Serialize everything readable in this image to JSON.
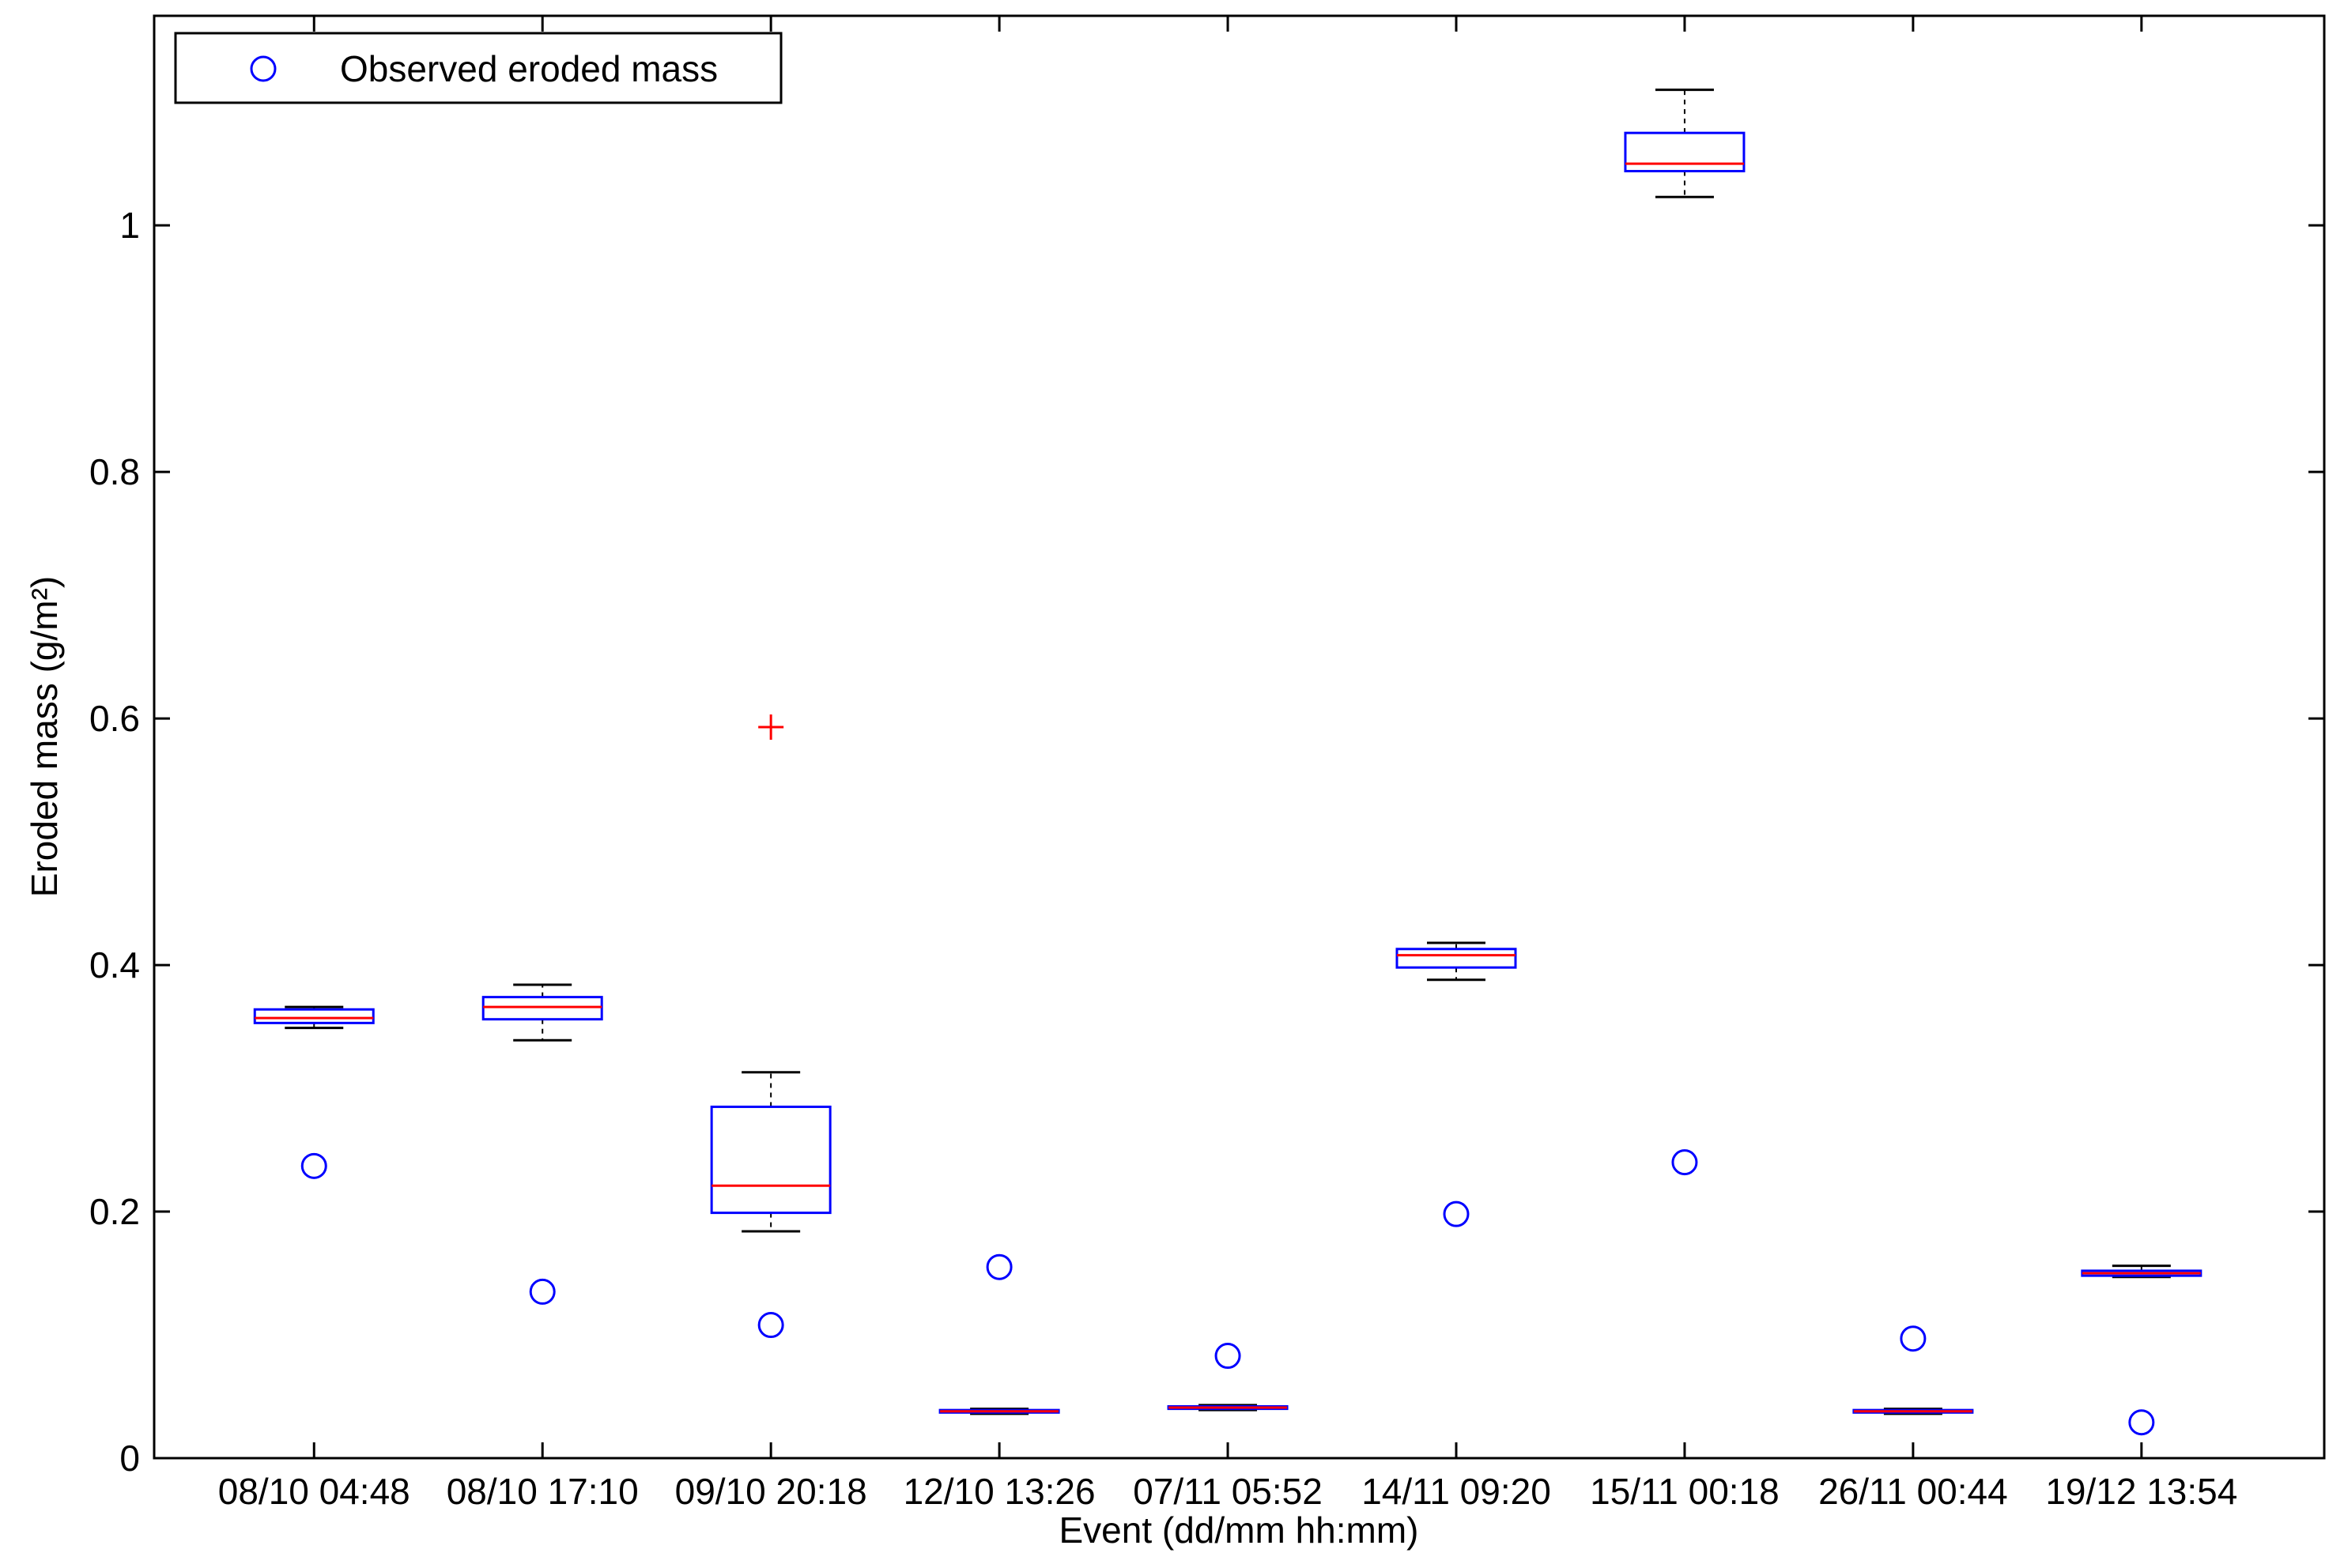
{
  "chart_data": {
    "type": "box",
    "xlabel": "Event (dd/mm hh:mm)",
    "ylabel": "Eroded mass (g/m²)",
    "ylim": [
      0,
      1.17
    ],
    "yticks": [
      0,
      0.2,
      0.4,
      0.6,
      0.8,
      1
    ],
    "ytick_labels": [
      "0",
      "0.2",
      "0.4",
      "0.6",
      "0.8",
      "1"
    ],
    "grid": false,
    "legend": {
      "position": "top-left",
      "entries": [
        "Observed eroded mass"
      ]
    },
    "colors": {
      "box": "#0000ff",
      "median": "#ff0000",
      "whisker": "#000000",
      "outlier": "#ff0000",
      "observed": "#0000ff"
    },
    "categories": [
      "08/10 04:48",
      "08/10 17:10",
      "09/10 20:18",
      "12/10 13:26",
      "07/11 05:52",
      "14/11 09:20",
      "15/11 00:18",
      "26/11 00:44",
      "19/12 13:54"
    ],
    "boxes": [
      {
        "whislo": 0.349,
        "q1": 0.353,
        "median": 0.357,
        "q3": 0.364,
        "whishi": 0.366,
        "outliers": []
      },
      {
        "whislo": 0.339,
        "q1": 0.356,
        "median": 0.366,
        "q3": 0.374,
        "whishi": 0.384,
        "outliers": []
      },
      {
        "whislo": 0.184,
        "q1": 0.199,
        "median": 0.221,
        "q3": 0.285,
        "whishi": 0.313,
        "outliers": [
          0.593
        ]
      },
      {
        "whislo": 0.036,
        "q1": 0.037,
        "median": 0.038,
        "q3": 0.039,
        "whishi": 0.04,
        "outliers": []
      },
      {
        "whislo": 0.039,
        "q1": 0.04,
        "median": 0.041,
        "q3": 0.042,
        "whishi": 0.043,
        "outliers": []
      },
      {
        "whislo": 0.388,
        "q1": 0.398,
        "median": 0.408,
        "q3": 0.413,
        "whishi": 0.418,
        "outliers": []
      },
      {
        "whislo": 1.023,
        "q1": 1.044,
        "median": 1.05,
        "q3": 1.075,
        "whishi": 1.11,
        "outliers": []
      },
      {
        "whislo": 0.036,
        "q1": 0.037,
        "median": 0.038,
        "q3": 0.039,
        "whishi": 0.04,
        "outliers": []
      },
      {
        "whislo": 0.147,
        "q1": 0.148,
        "median": 0.15,
        "q3": 0.152,
        "whishi": 0.156,
        "outliers": []
      }
    ],
    "observed": {
      "name": "Observed eroded mass",
      "values": [
        0.237,
        0.135,
        0.108,
        0.155,
        0.083,
        0.198,
        0.24,
        0.097,
        0.029
      ]
    }
  }
}
